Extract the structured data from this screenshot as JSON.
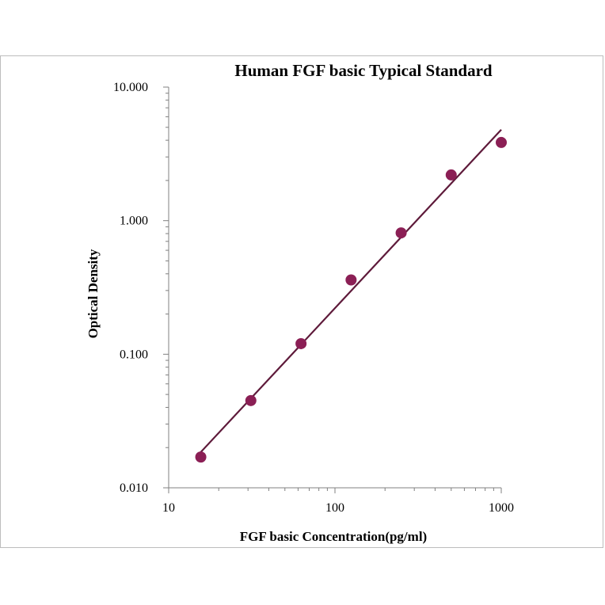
{
  "chart_data": {
    "type": "scatter",
    "title": "Human  FGF basic Typical  Standard",
    "xlabel": "FGF  basic Concentration(pg/ml)",
    "ylabel": "Optical  Density",
    "x_scale": "log",
    "y_scale": "log",
    "xlim": [
      10,
      1000
    ],
    "ylim": [
      0.01,
      10
    ],
    "x_ticks": [
      "10",
      "100",
      "1000"
    ],
    "y_ticks": [
      "0.010",
      "0.100",
      "1.000",
      "10.000"
    ],
    "grid": false,
    "legend": "none",
    "colors": {
      "points": "#8b1f55",
      "line": "#5e1a3a",
      "axis": "#808080"
    },
    "series": [
      {
        "type": "scatter",
        "x": [
          15.6,
          31.2,
          62.5,
          125,
          250,
          500,
          1000
        ],
        "y": [
          0.017,
          0.045,
          0.12,
          0.36,
          0.81,
          2.2,
          3.85
        ]
      },
      {
        "type": "line",
        "x": [
          15.6,
          1000
        ],
        "y": [
          0.0185,
          4.8
        ]
      }
    ]
  }
}
